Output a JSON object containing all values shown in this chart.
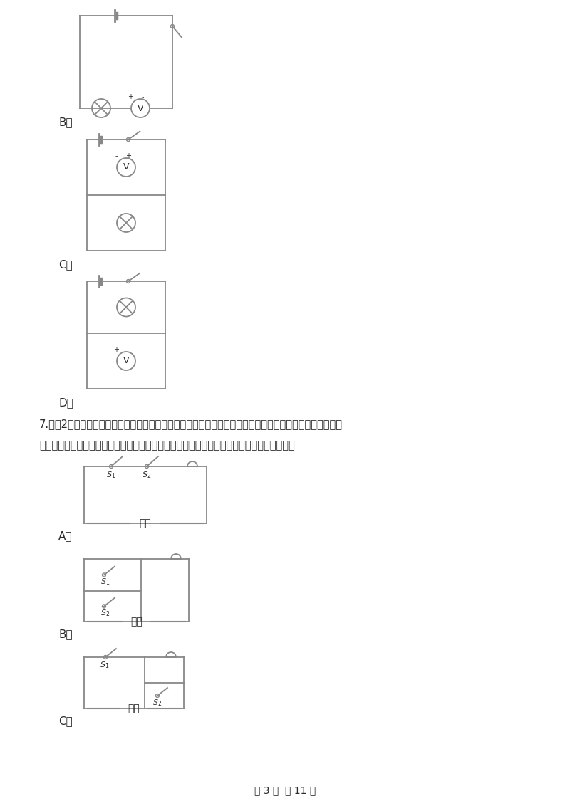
{
  "bg_color": "#ffffff",
  "text_color": "#2a2a2a",
  "line_color": "#888888",
  "fig_width": 8.0,
  "fig_height": 11.32,
  "question7_text1": "7.　（2分）在公交车后门两侧扶杆上均装有一个红色按钒，每一个按钒相当于一个开关，当乘客按下任一按",
  "question7_text2": "钒，驾驶台上的电铃就会发声，提醒司机有人下车．下列电路图能实现上述目标的是（　　）",
  "footer_text": "第 3 页  共 11 页",
  "label_B": "B．",
  "label_C": "C．",
  "label_D": "D．",
  "label_A7": "A．",
  "label_B7": "B．",
  "label_C7": "C．"
}
